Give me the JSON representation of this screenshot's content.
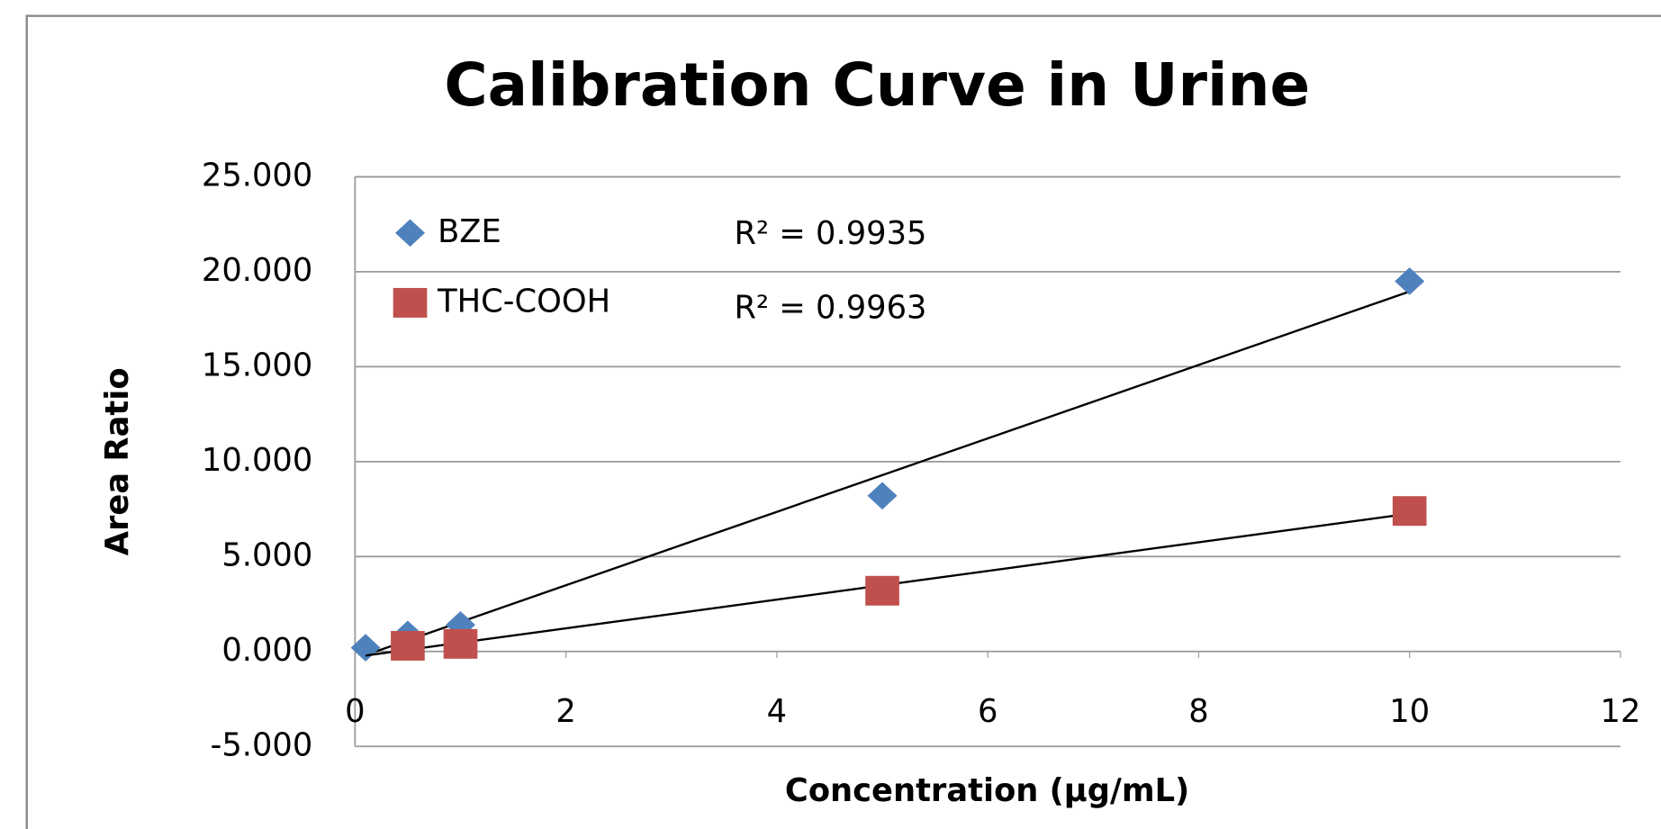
{
  "chart_data": {
    "type": "scatter",
    "title": "Calibration Curve in Urine",
    "xlabel": "Concentration (µg/mL)",
    "ylabel": "Area Ratio",
    "xlim": [
      0,
      12
    ],
    "xticks": [
      0,
      2,
      4,
      6,
      8,
      10,
      12
    ],
    "ylim": [
      -5,
      25
    ],
    "yticks": [
      {
        "value": -5,
        "label": "-5.000"
      },
      {
        "value": 0,
        "label": "0.000"
      },
      {
        "value": 5,
        "label": "5.000"
      },
      {
        "value": 10,
        "label": "10.000"
      },
      {
        "value": 15,
        "label": "15.000"
      },
      {
        "value": 20,
        "label": "20.000"
      },
      {
        "value": 25,
        "label": "25.000"
      }
    ],
    "grid": true,
    "trendline": "linear",
    "legend": "upper left",
    "series": [
      {
        "name": "BZE",
        "color": "#4f81bd",
        "marker": "diamond",
        "x": [
          0.1,
          0.5,
          1,
          5,
          10
        ],
        "values": [
          0.2,
          0.9,
          1.4,
          8.2,
          19.5
        ]
      },
      {
        "name": "THC-COOH",
        "color": "#c0504d",
        "marker": "square",
        "x": [
          0.5,
          1,
          5,
          10
        ],
        "values": [
          0.3,
          0.4,
          3.2,
          7.4
        ]
      }
    ],
    "annotations": [
      "R² = 0.9935",
      "R² = 0.9963"
    ]
  }
}
